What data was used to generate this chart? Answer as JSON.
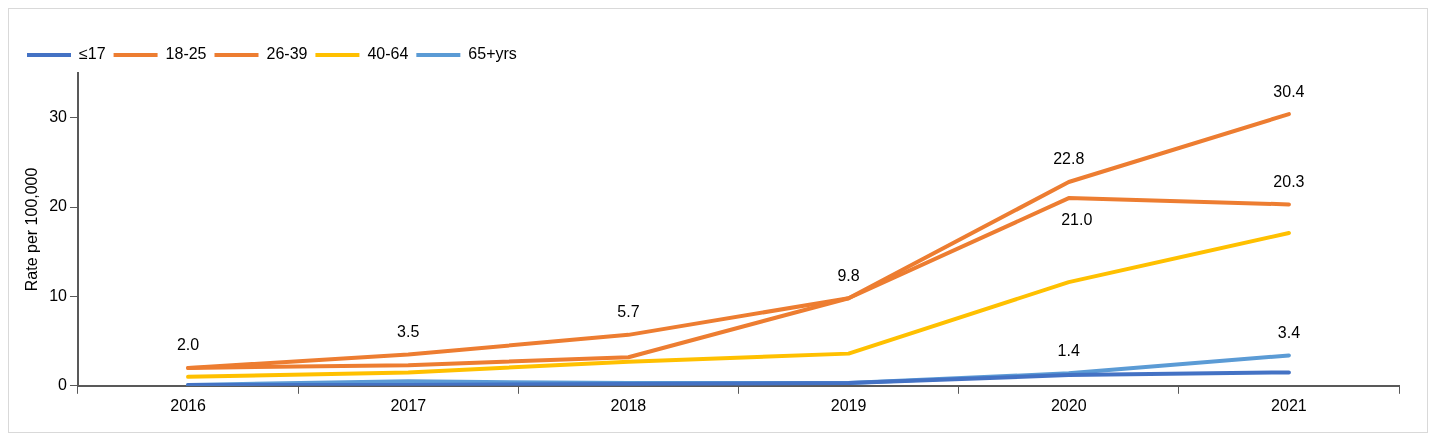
{
  "chart_data": {
    "type": "line",
    "ylabel": "Rate per 100,000",
    "categories": [
      "2016",
      "2017",
      "2018",
      "2019",
      "2020",
      "2021"
    ],
    "ylim": [
      0,
      35
    ],
    "yticks": [
      0,
      10,
      20,
      30
    ],
    "grid": false,
    "legend": "top left",
    "marker": "none",
    "line_style": "solid",
    "series": [
      {
        "name": "≤17",
        "color": "#4472c4",
        "values": [
          0.1,
          0.1,
          0.2,
          0.3,
          1.2,
          1.5
        ]
      },
      {
        "name": "18-25",
        "color": "#ed7d31",
        "values": [
          2.0,
          2.3,
          3.2,
          9.8,
          21.0,
          20.3
        ],
        "value_labels": [
          null,
          null,
          null,
          null,
          "21.0",
          "20.3"
        ]
      },
      {
        "name": "26-39",
        "color": "#ed7d31",
        "values": [
          2.0,
          3.5,
          5.7,
          9.8,
          22.8,
          30.4
        ],
        "value_labels": [
          "2.0",
          "3.5",
          "5.7",
          "9.8",
          "22.8",
          "30.4"
        ]
      },
      {
        "name": "40-64",
        "color": "#ffc000",
        "values": [
          1.0,
          1.5,
          2.7,
          3.6,
          11.6,
          17.1
        ]
      },
      {
        "name": "65+yrs",
        "color": "#5b9bd5",
        "values": [
          0.1,
          0.5,
          0.3,
          0.3,
          1.4,
          3.4
        ],
        "value_labels": [
          null,
          null,
          null,
          null,
          "1.4",
          "3.4"
        ]
      }
    ]
  }
}
